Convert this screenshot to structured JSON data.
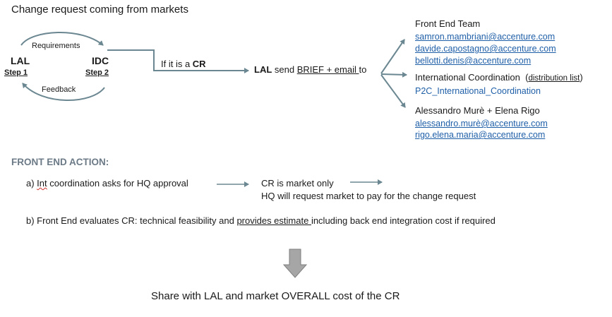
{
  "title": "Change request coming from markets",
  "cycle": {
    "lal_label": "LAL",
    "lal_step": "Step 1",
    "idc_label": "IDC",
    "idc_step": "Step 2",
    "top_arrow_label": "Requirements",
    "bottom_arrow_label": "Feedback"
  },
  "condition": {
    "prefix": "If it is a ",
    "bold": "CR"
  },
  "send": {
    "actor": "LAL",
    "text1": " send ",
    "underlined": "BRIEF + email ",
    "text2": "to"
  },
  "recipients": [
    {
      "name": "Front End Team",
      "emails": [
        "samron.mambriani@accenture.com",
        "davide.capostagno@accenture.com",
        "bellotti.denis@accenture.com"
      ]
    },
    {
      "name": "International Coordination",
      "note": "distribution list",
      "sub": "P2C_International_Coordination"
    },
    {
      "name": "Alessandro Murè + Elena Rigo",
      "emails": [
        "alessandro.murè@accenture.com",
        "rigo.elena.maria@accenture.com"
      ]
    }
  ],
  "front_end": {
    "heading": "FRONT END ACTION:",
    "a_prefix": "a) ",
    "a_int": "Int",
    "a_rest": " coordination asks for HQ approval",
    "a_result1": "CR is market only",
    "a_result2": "HQ will request market to pay for the change request",
    "b_prefix": "b) Front End evaluates CR: technical feasibility and ",
    "b_underlined": "provides estimate ",
    "b_suffix": "including back end integration cost if required"
  },
  "footer": {
    "prefix": "Share with ",
    "lal": "LAL",
    "middle": " and market ",
    "overall": "OVERALL",
    "suffix": " cost of the CR"
  },
  "colors": {
    "arrow": "#6b8791",
    "link": "#1f5fa8",
    "heading": "#6b7a86",
    "down_arrow_fill": "#a6a6a6"
  }
}
